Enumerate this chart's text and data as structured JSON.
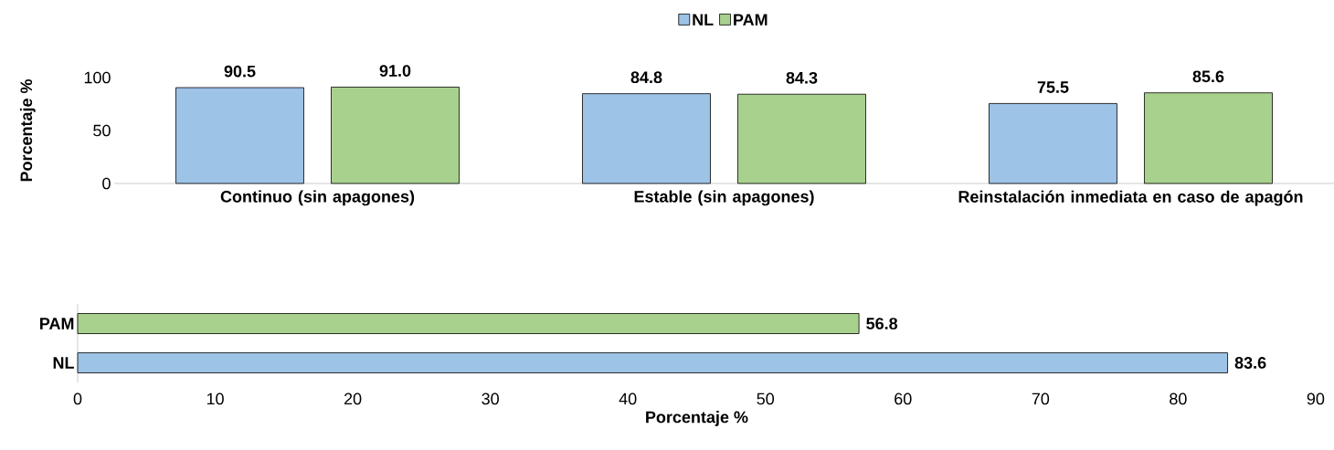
{
  "chart_data": [
    {
      "type": "bar",
      "ylabel": "Porcentaje %",
      "categories": [
        "Continuo (sin apagones)",
        "Estable (sin apagones)",
        "Reinstalación inmediata en caso de apagón"
      ],
      "ylim": [
        0,
        100
      ],
      "yticks": [
        0,
        50,
        100
      ],
      "legend": "top",
      "series": [
        {
          "name": "NL",
          "color": "#9dc3e6",
          "values": [
            90.5,
            84.8,
            75.5
          ],
          "value_labels": [
            "90.5",
            "84.8",
            "75.5"
          ]
        },
        {
          "name": "PAM",
          "color": "#a9d18e",
          "values": [
            91.0,
            84.3,
            85.6
          ],
          "value_labels": [
            "91.0",
            "84.3",
            "85.6"
          ]
        }
      ]
    },
    {
      "type": "bar",
      "orientation": "horizontal",
      "xlabel": "Porcentaje %",
      "categories": [
        "PAM",
        "NL"
      ],
      "values": [
        56.8,
        83.6
      ],
      "value_labels": [
        "56.8",
        "83.6"
      ],
      "colors": [
        "#a9d18e",
        "#9dc3e6"
      ],
      "xlim": [
        0,
        90
      ],
      "xticks": [
        0,
        10,
        20,
        30,
        40,
        50,
        60,
        70,
        80,
        90
      ]
    }
  ]
}
